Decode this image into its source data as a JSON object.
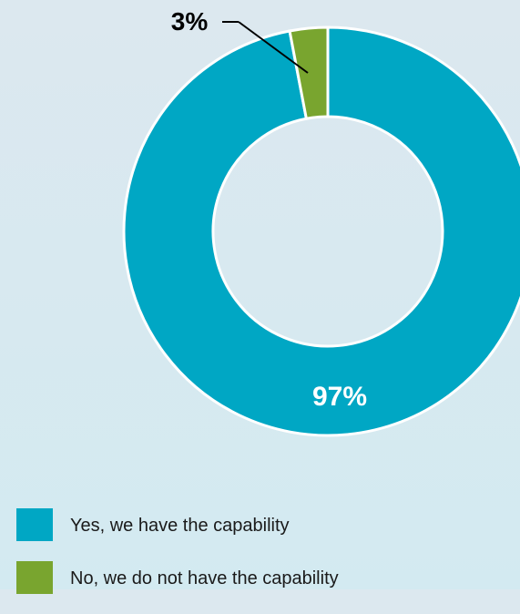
{
  "chart_data": {
    "type": "pie",
    "donut": true,
    "categories": [
      "Yes, we have the capability",
      "No, we do not have the capability"
    ],
    "values": [
      97,
      3
    ],
    "labels": [
      "97%",
      "3%"
    ],
    "colors": [
      "#00a7c4",
      "#79a52f"
    ],
    "legend_position": "bottom-left"
  }
}
